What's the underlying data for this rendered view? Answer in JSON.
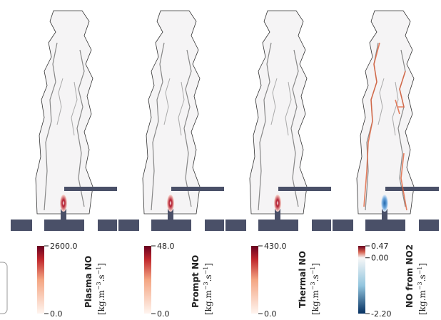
{
  "panels": [
    {
      "title": "Plasma NO",
      "unit": [
        "[kg.m",
        "−3",
        ".s",
        "−1",
        "]"
      ],
      "ticks": [
        "2600.0",
        "0.0"
      ]
    },
    {
      "title": "Prompt NO",
      "unit": [
        "[kg.m",
        "−3",
        ".s",
        "−1",
        "]"
      ],
      "ticks": [
        "48.0",
        "0.0"
      ]
    },
    {
      "title": "Thermal NO",
      "unit": [
        "[kg.m",
        "−3",
        ".s",
        "−1",
        "]"
      ],
      "ticks": [
        "430.0",
        "0.0"
      ]
    },
    {
      "title": "NO from NO2",
      "unit": [
        "[kg.m",
        "−3",
        ".s",
        "−1",
        "]"
      ],
      "ticks": [
        "0.47",
        "0.00",
        "-2.20"
      ]
    }
  ]
}
